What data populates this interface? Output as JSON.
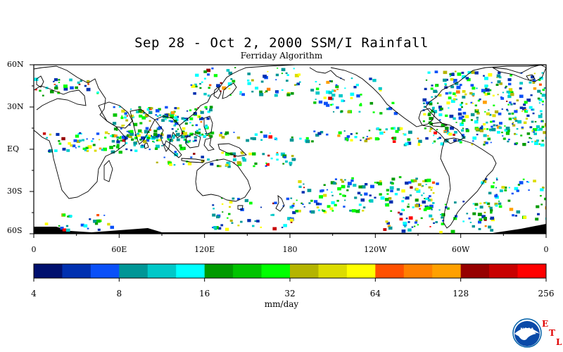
{
  "title": "Sep 28 - Oct 2, 2000 SSM/I Rainfall",
  "subtitle": "Ferriday Algorithm",
  "lat_labels": [
    "60N",
    "30N",
    "EQ",
    "30S",
    "60S"
  ],
  "lon_labels": [
    "0",
    "60E",
    "120E",
    "180",
    "120W",
    "60W",
    "0"
  ],
  "colorbar": {
    "colors": [
      "#00106e",
      "#0030b0",
      "#0a50f8",
      "#009696",
      "#00c8c8",
      "#00ffff",
      "#009a00",
      "#00c400",
      "#00ff00",
      "#b4b400",
      "#dcdc00",
      "#ffff00",
      "#ff5000",
      "#ff8000",
      "#ffa000",
      "#960000",
      "#c80000",
      "#ff0000"
    ],
    "tick_labels": [
      "4",
      "8",
      "16",
      "32",
      "64",
      "128",
      "256"
    ],
    "units": "mm/day"
  },
  "logo": {
    "text": "NOAA",
    "letters": [
      "E",
      "T",
      "L"
    ]
  }
}
